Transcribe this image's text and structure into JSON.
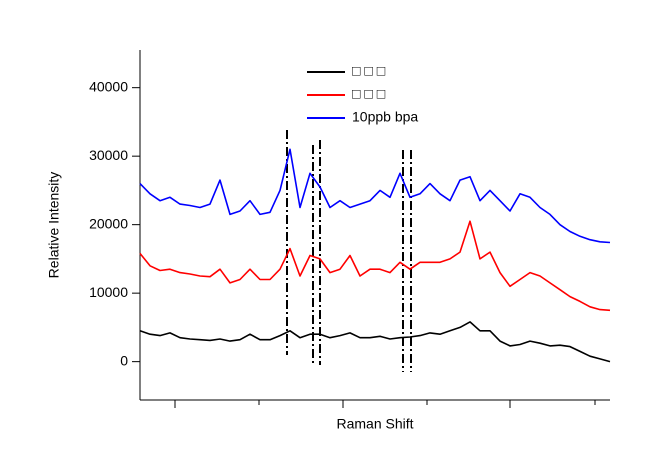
{
  "chart_data": {
    "type": "line",
    "x_label": "Raman Shift",
    "y_label": "Relative Intensity",
    "ylim": [
      -5600,
      45500
    ],
    "yticks": [
      0,
      10000,
      20000,
      30000,
      40000
    ],
    "legend": "top-center",
    "series": [
      {
        "name": "□ □ □",
        "color": "#000000",
        "values": [
          4500,
          4000,
          3800,
          4200,
          3500,
          3300,
          3200,
          3100,
          3300,
          3000,
          3200,
          4000,
          3200,
          3200,
          3800,
          4500,
          3500,
          4000,
          4000,
          3500,
          3800,
          4200,
          3500,
          3500,
          3700,
          3300,
          3500,
          3600,
          3800,
          4200,
          4000,
          4500,
          5000,
          5800,
          4500,
          4500,
          3000,
          2300,
          2500,
          3000,
          2700,
          2300,
          2400,
          2200,
          1500,
          800,
          400,
          0
        ]
      },
      {
        "name": "□ □ □",
        "color": "#ff0000",
        "values": [
          15800,
          14000,
          13300,
          13500,
          13000,
          12800,
          12500,
          12400,
          13500,
          11500,
          12000,
          13500,
          12000,
          12000,
          13500,
          16500,
          12500,
          15500,
          15000,
          13000,
          13500,
          15500,
          12500,
          13500,
          13500,
          13000,
          14500,
          13500,
          14500,
          14500,
          14500,
          15000,
          16000,
          20500,
          15000,
          16000,
          13000,
          11000,
          12000,
          13000,
          12500,
          11500,
          10500,
          9500,
          8800,
          8000,
          7600,
          7500
        ]
      },
      {
        "name": "10ppb bpa",
        "color": "#0000ff",
        "values": [
          26000,
          24500,
          23500,
          24000,
          23000,
          22800,
          22500,
          23000,
          26500,
          21500,
          22000,
          23500,
          21500,
          21800,
          25000,
          31000,
          22500,
          27500,
          25500,
          22500,
          23500,
          22500,
          23000,
          23500,
          25000,
          24000,
          27500,
          24000,
          24500,
          26000,
          24500,
          23500,
          26500,
          27000,
          23500,
          25000,
          23500,
          22000,
          24500,
          24000,
          22500,
          21500,
          20000,
          19000,
          18300,
          17800,
          17500,
          17400
        ]
      }
    ]
  }
}
